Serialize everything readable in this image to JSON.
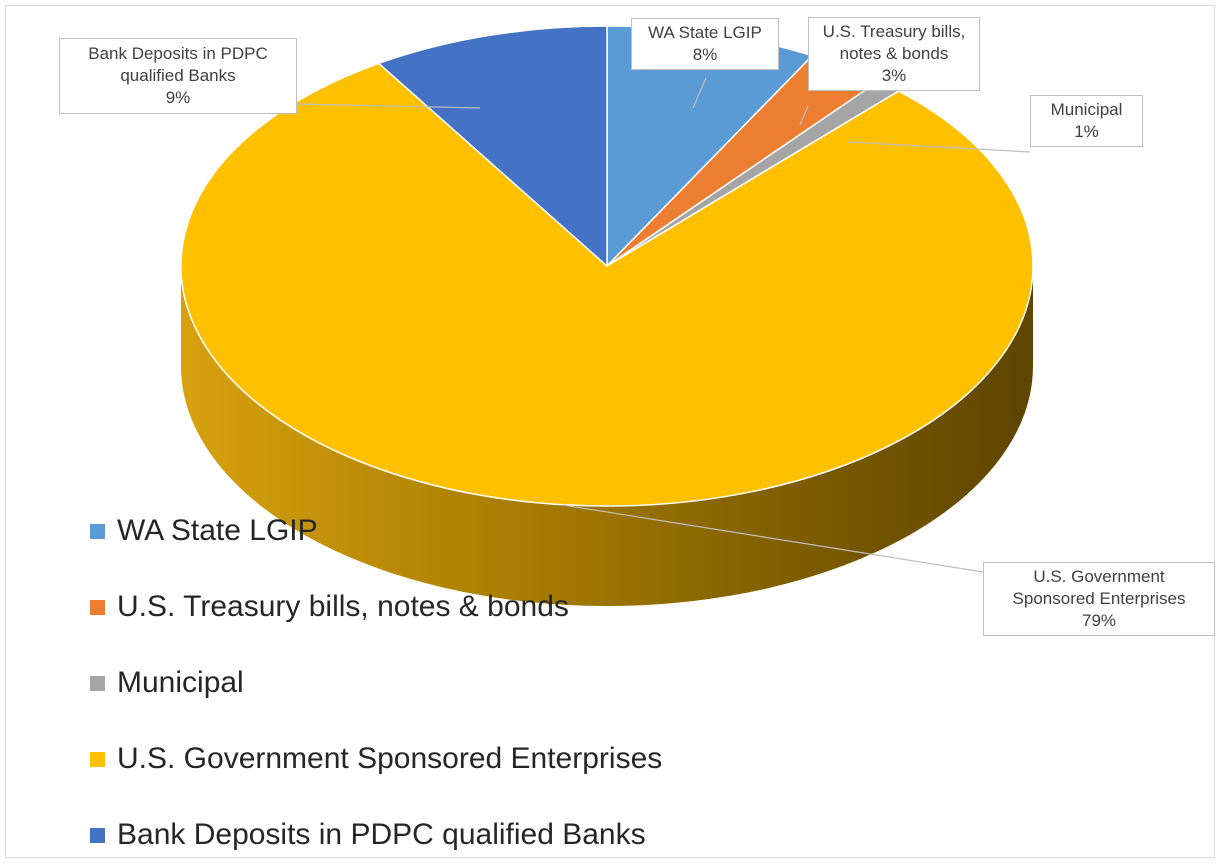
{
  "chart_data": {
    "type": "pie",
    "style": "3d",
    "title": "",
    "legend_position": "left-bottom",
    "slices": [
      {
        "label": "WA State LGIP",
        "callout_label": "WA State LGIP",
        "value": 8,
        "percent_label": "8%",
        "color": "#5b9bd5"
      },
      {
        "label": "U.S. Treasury bills, notes & bonds",
        "callout_label": "U.S. Treasury bills, notes & bonds",
        "value": 3,
        "percent_label": "3%",
        "color": "#ed7d31"
      },
      {
        "label": "Municipal",
        "callout_label": "Municipal",
        "value": 1,
        "percent_label": "1%",
        "color": "#a5a5a5"
      },
      {
        "label": "U.S. Government Sponsored Enterprises",
        "callout_label": "U.S. Government Sponsored Enterprises",
        "value": 79,
        "percent_label": "79%",
        "color": "#ffc000"
      },
      {
        "label": "Bank Deposits in PDPC qualified Banks",
        "callout_label": "Bank Deposits in PDPC qualified Banks",
        "value": 9,
        "percent_label": "9%",
        "color": "#4472c4"
      }
    ]
  }
}
